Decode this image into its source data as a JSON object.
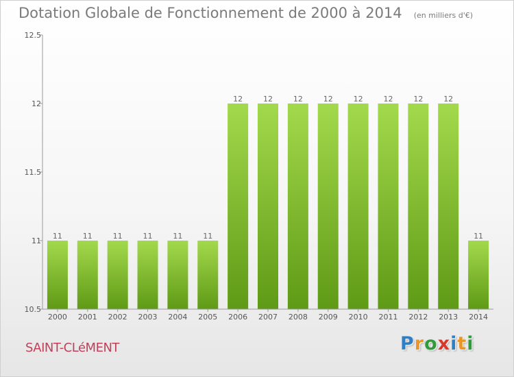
{
  "chart_data": {
    "type": "bar",
    "title": "Dotation Globale de Fonctionnement de 2000 à 2014",
    "unit_note": "(en milliers d'€)",
    "categories": [
      "2000",
      "2001",
      "2002",
      "2003",
      "2004",
      "2005",
      "2006",
      "2007",
      "2008",
      "2009",
      "2010",
      "2011",
      "2012",
      "2013",
      "2014"
    ],
    "values": [
      11,
      11,
      11,
      11,
      11,
      11,
      12,
      12,
      12,
      12,
      12,
      12,
      12,
      12,
      11
    ],
    "data_labels": [
      "11",
      "11",
      "11",
      "11",
      "11",
      "11",
      "12",
      "12",
      "12",
      "12",
      "12",
      "12",
      "12",
      "12",
      "11"
    ],
    "ylim": [
      10.5,
      12.5
    ],
    "yticks": [
      10.5,
      11,
      11.5,
      12,
      12.5
    ],
    "ytick_labels": [
      "10.5",
      "11",
      "11.5",
      "12",
      "12.5"
    ],
    "grid": false,
    "bar_color_light": "#a3d94c",
    "bar_color_dark": "#5f9a16"
  },
  "commune": "SAINT-CLéMENT",
  "brand": {
    "name": "Proxiti",
    "letters": [
      {
        "char": "P",
        "color": "#2f7fc4"
      },
      {
        "char": "r",
        "color": "#e8962a"
      },
      {
        "char": "o",
        "color": "#2f9b3a"
      },
      {
        "char": "x",
        "color": "#d8382c"
      },
      {
        "char": "i",
        "color": "#2f7fc4"
      },
      {
        "char": "t",
        "color": "#e8962a"
      },
      {
        "char": "i",
        "color": "#2f9b3a"
      }
    ]
  }
}
